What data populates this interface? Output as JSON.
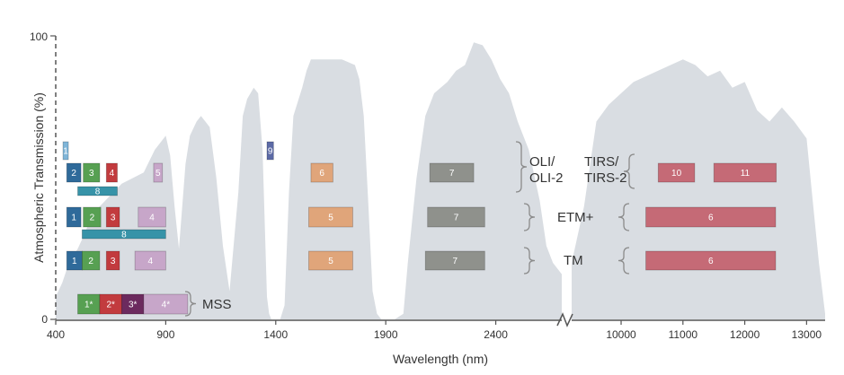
{
  "chart_data": {
    "type": "area",
    "xlabel": "Wavelength (nm)",
    "ylabel": "Atmospheric Transmission (%)",
    "ylim": [
      0,
      100
    ],
    "y_ticks": [
      "0",
      "100"
    ],
    "x_ticks": [
      "400",
      "900",
      "1400",
      "1900",
      "2400",
      "10000",
      "11000",
      "12000",
      "13000"
    ],
    "x_scale": "broken axis: 400–2700 nm linear, then 9200–13300 nm linear",
    "colors": {
      "transmission": "#d9dde2",
      "blue": "#2f6a9a",
      "green": "#57a052",
      "red": "#c23b3e",
      "nir": "#c7a6c9",
      "swir1": "#e0a57a",
      "swir2": "#8f918c",
      "tir": "#c56a76",
      "pan": "#3793a8",
      "cirrus": "#5c6aa6",
      "coastal": "#7fb5d8",
      "mss_nir2": "#6c2a5e"
    },
    "transmission": {
      "x": [
        400,
        430,
        460,
        500,
        530,
        560,
        600,
        650,
        700,
        750,
        800,
        850,
        900,
        920,
        940,
        960,
        990,
        1010,
        1040,
        1060,
        1080,
        1100,
        1130,
        1160,
        1190,
        1230,
        1250,
        1270,
        1300,
        1320,
        1340,
        1360,
        1370,
        1380,
        1420,
        1440,
        1460,
        1480,
        1520,
        1540,
        1560,
        1600,
        1650,
        1700,
        1760,
        1780,
        1800,
        1820,
        1840,
        1860,
        1880,
        1900,
        1940,
        1980,
        2000,
        2040,
        2080,
        2120,
        2180,
        2220,
        2260,
        2300,
        2340,
        2380,
        2420,
        2460,
        2500,
        2550,
        2600,
        2630,
        2660,
        2700,
        9200,
        9400,
        9600,
        9800,
        10000,
        10200,
        10400,
        10600,
        10800,
        11000,
        11200,
        11400,
        11600,
        11800,
        12000,
        12200,
        12400,
        12600,
        12800,
        13000,
        13100,
        13200,
        13300
      ],
      "y": [
        8,
        13,
        20,
        25,
        30,
        36,
        40,
        44,
        48,
        50,
        52,
        60,
        65,
        58,
        40,
        25,
        55,
        65,
        70,
        72,
        70,
        68,
        50,
        26,
        10,
        45,
        72,
        78,
        82,
        80,
        60,
        8,
        2,
        0,
        0,
        5,
        45,
        72,
        82,
        88,
        92,
        92,
        92,
        92,
        90,
        85,
        72,
        42,
        10,
        2,
        0,
        0,
        0,
        2,
        20,
        50,
        72,
        80,
        84,
        88,
        90,
        98,
        97,
        92,
        85,
        80,
        70,
        60,
        42,
        26,
        20,
        16,
        20,
        40,
        70,
        76,
        80,
        84,
        86,
        88,
        90,
        92,
        90,
        86,
        88,
        82,
        84,
        74,
        70,
        75,
        70,
        64,
        42,
        20,
        2
      ]
    },
    "sensors": [
      {
        "name": "OLI/ OLI-2",
        "label_lines": [
          "OLI/",
          "OLI-2"
        ],
        "bands": [
          {
            "label": "1",
            "x0": 433,
            "x1": 453,
            "row": "a",
            "color": "coastal"
          },
          {
            "label": "2",
            "x0": 450,
            "x1": 515,
            "row": "b",
            "color": "blue"
          },
          {
            "label": "3",
            "x0": 525,
            "x1": 600,
            "row": "b",
            "color": "green"
          },
          {
            "label": "4",
            "x0": 630,
            "x1": 680,
            "row": "b",
            "color": "red"
          },
          {
            "label": "5",
            "x0": 845,
            "x1": 885,
            "row": "b",
            "color": "nir"
          },
          {
            "label": "6",
            "x0": 1560,
            "x1": 1660,
            "row": "b",
            "color": "swir1"
          },
          {
            "label": "7",
            "x0": 2100,
            "x1": 2300,
            "row": "b",
            "color": "swir2"
          },
          {
            "label": "8",
            "x0": 500,
            "x1": 680,
            "row": "c",
            "color": "pan"
          },
          {
            "label": "9",
            "x0": 1360,
            "x1": 1390,
            "row": "a",
            "color": "cirrus"
          }
        ]
      },
      {
        "name": "TIRS/ TIRS-2",
        "label_lines": [
          "TIRS/",
          "TIRS-2"
        ],
        "bands": [
          {
            "label": "10",
            "x0": 10600,
            "x1": 11190,
            "row": "b",
            "color": "tir"
          },
          {
            "label": "11",
            "x0": 11500,
            "x1": 12510,
            "row": "b",
            "color": "tir"
          }
        ]
      },
      {
        "name": "ETM+",
        "label_lines": [
          "ETM+"
        ],
        "bands": [
          {
            "label": "1",
            "x0": 450,
            "x1": 515,
            "row": "d",
            "color": "blue"
          },
          {
            "label": "2",
            "x0": 525,
            "x1": 605,
            "row": "d",
            "color": "green"
          },
          {
            "label": "3",
            "x0": 630,
            "x1": 690,
            "row": "d",
            "color": "red"
          },
          {
            "label": "4",
            "x0": 775,
            "x1": 900,
            "row": "d",
            "color": "nir"
          },
          {
            "label": "5",
            "x0": 1550,
            "x1": 1750,
            "row": "d",
            "color": "swir1"
          },
          {
            "label": "7",
            "x0": 2090,
            "x1": 2350,
            "row": "d",
            "color": "swir2"
          },
          {
            "label": "6",
            "x0": 10400,
            "x1": 12500,
            "row": "d",
            "color": "tir"
          },
          {
            "label": "8",
            "x0": 520,
            "x1": 900,
            "row": "e",
            "color": "pan"
          }
        ]
      },
      {
        "name": "TM",
        "label_lines": [
          "TM"
        ],
        "bands": [
          {
            "label": "1",
            "x0": 450,
            "x1": 520,
            "row": "f",
            "color": "blue"
          },
          {
            "label": "2",
            "x0": 520,
            "x1": 600,
            "row": "f",
            "color": "green"
          },
          {
            "label": "3",
            "x0": 630,
            "x1": 690,
            "row": "f",
            "color": "red"
          },
          {
            "label": "4",
            "x0": 760,
            "x1": 900,
            "row": "f",
            "color": "nir"
          },
          {
            "label": "5",
            "x0": 1550,
            "x1": 1750,
            "row": "f",
            "color": "swir1"
          },
          {
            "label": "7",
            "x0": 2080,
            "x1": 2350,
            "row": "f",
            "color": "swir2"
          },
          {
            "label": "6",
            "x0": 10400,
            "x1": 12500,
            "row": "f",
            "color": "tir"
          }
        ]
      },
      {
        "name": "MSS",
        "label_lines": [
          "MSS"
        ],
        "bands": [
          {
            "label": "1*",
            "x0": 500,
            "x1": 600,
            "row": "g",
            "color": "green"
          },
          {
            "label": "2*",
            "x0": 600,
            "x1": 700,
            "row": "g",
            "color": "red"
          },
          {
            "label": "3*",
            "x0": 700,
            "x1": 800,
            "row": "g",
            "color": "mss_nir2"
          },
          {
            "label": "4*",
            "x0": 800,
            "x1": 1100,
            "row": "g",
            "color": "nir",
            "x1_draw": 1000
          }
        ]
      }
    ]
  }
}
